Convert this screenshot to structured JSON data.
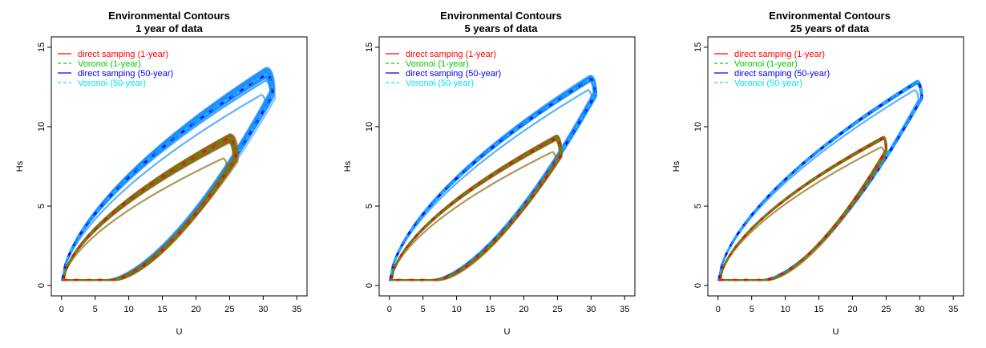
{
  "chart_data": [
    {
      "type": "line",
      "title": "Environmental Contours",
      "subtitle": "1 year of data",
      "xlabel": "U",
      "ylabel": "Hs",
      "xlim": [
        0,
        35
      ],
      "ylim": [
        0,
        15
      ],
      "x_ticks": [
        "0",
        "5",
        "10",
        "15",
        "20",
        "25",
        "30",
        "35"
      ],
      "y_ticks": [
        "0",
        "5",
        "10",
        "15"
      ],
      "grid": false,
      "legend_position": "top-left",
      "legend": [
        {
          "label": "direct samping (1-year)",
          "color": "#ff0000",
          "dash": "solid"
        },
        {
          "label": "Voronoi (1-year)",
          "color": "#00cc00",
          "dash": "dashed"
        },
        {
          "label": "direct samping (50-year)",
          "color": "#0000ff",
          "dash": "solid"
        },
        {
          "label": "Voronoi (50-year)",
          "color": "#00e5ee",
          "dash": "dashed"
        }
      ],
      "contours": {
        "c1": {
          "left_x": 0.3,
          "peak_x": 25.0,
          "peak_y": 9.3,
          "right_x": 25.9,
          "right_y": 8.0,
          "bottom_y": 0.35,
          "knee_x": 7.6,
          "inner_knee_x": 8.2,
          "inner_peak_y": 8.0,
          "inner_peak_x": 24.0
        },
        "c50": {
          "left_x": 0.1,
          "peak_x": 30.5,
          "peak_y": 13.3,
          "right_x": 31.4,
          "right_y": 12.0,
          "bottom_y": 0.35,
          "knee_x": 7.3,
          "inner_knee_x": 7.8,
          "inner_peak_y": 12.0,
          "inner_peak_x": 29.7
        }
      },
      "variability": 0.35
    },
    {
      "type": "line",
      "title": "Environmental Contours",
      "subtitle": "5 years of data",
      "xlabel": "U",
      "ylabel": "Hs",
      "xlim": [
        0,
        35
      ],
      "ylim": [
        0,
        15
      ],
      "x_ticks": [
        "0",
        "5",
        "10",
        "15",
        "20",
        "25",
        "30",
        "35"
      ],
      "y_ticks": [
        "0",
        "5",
        "10",
        "15"
      ],
      "grid": false,
      "legend_position": "top-left",
      "legend": [
        {
          "label": "direct samping (1-year)",
          "color": "#ff0000",
          "dash": "solid"
        },
        {
          "label": "Voronoi (1-year)",
          "color": "#00cc00",
          "dash": "dashed"
        },
        {
          "label": "direct samping (50-year)",
          "color": "#0000ff",
          "dash": "solid"
        },
        {
          "label": "Voronoi (50-year)",
          "color": "#00e5ee",
          "dash": "dashed"
        }
      ],
      "contours": {
        "c1": {
          "left_x": 0.3,
          "peak_x": 24.8,
          "peak_y": 9.3,
          "right_x": 25.5,
          "right_y": 8.2,
          "bottom_y": 0.35,
          "knee_x": 7.0,
          "inner_knee_x": 7.6,
          "inner_peak_y": 8.4,
          "inner_peak_x": 24.2
        },
        "c50": {
          "left_x": 0.1,
          "peak_x": 29.9,
          "peak_y": 13.0,
          "right_x": 30.6,
          "right_y": 12.0,
          "bottom_y": 0.35,
          "knee_x": 6.7,
          "inner_knee_x": 7.1,
          "inner_peak_y": 12.3,
          "inner_peak_x": 29.5
        }
      },
      "variability": 0.18
    },
    {
      "type": "line",
      "title": "Environmental Contours",
      "subtitle": "25 years of data",
      "xlabel": "U",
      "ylabel": "Hs",
      "xlim": [
        0,
        35
      ],
      "ylim": [
        0,
        15
      ],
      "x_ticks": [
        "0",
        "5",
        "10",
        "15",
        "20",
        "25",
        "30",
        "35"
      ],
      "y_ticks": [
        "0",
        "5",
        "10",
        "15"
      ],
      "grid": false,
      "legend_position": "top-left",
      "legend": [
        {
          "label": "direct samping (1-year)",
          "color": "#ff0000",
          "dash": "solid"
        },
        {
          "label": "Voronoi (1-year)",
          "color": "#00cc00",
          "dash": "dashed"
        },
        {
          "label": "direct samping (50-year)",
          "color": "#0000ff",
          "dash": "solid"
        },
        {
          "label": "Voronoi (50-year)",
          "color": "#00e5ee",
          "dash": "dashed"
        }
      ],
      "contours": {
        "c1": {
          "left_x": 0.3,
          "peak_x": 24.6,
          "peak_y": 9.3,
          "right_x": 25.0,
          "right_y": 8.5,
          "bottom_y": 0.35,
          "knee_x": 7.2,
          "inner_knee_x": 7.6,
          "inner_peak_y": 8.7,
          "inner_peak_x": 24.2
        },
        "c50": {
          "left_x": 0.1,
          "peak_x": 29.6,
          "peak_y": 12.8,
          "right_x": 30.3,
          "right_y": 11.8,
          "bottom_y": 0.35,
          "knee_x": 6.8,
          "inner_knee_x": 7.1,
          "inner_peak_y": 12.3,
          "inner_peak_x": 29.2
        }
      },
      "variability": 0.08
    }
  ],
  "colors": {
    "band_1yr": "#8b6a1a",
    "band_50yr": "#1e90ff",
    "ds_1yr": "#ff0000",
    "vor_1yr": "#00cc00",
    "ds_50yr": "#0000ff",
    "vor_50yr": "#00e5ee"
  }
}
